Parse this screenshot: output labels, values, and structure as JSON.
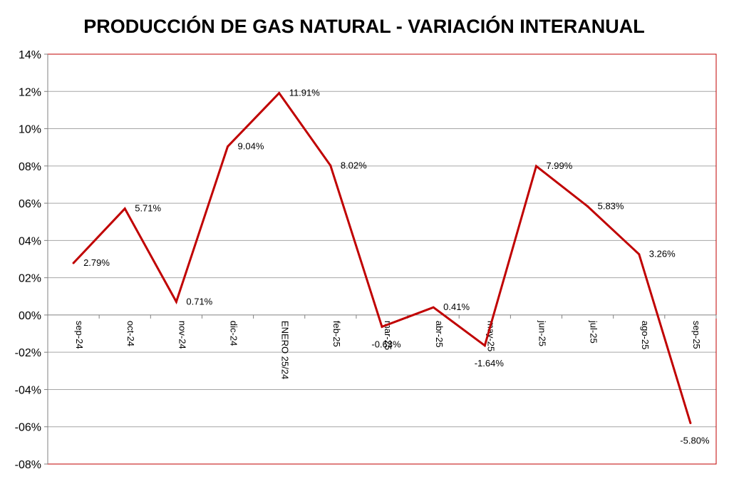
{
  "chart_data": {
    "type": "line",
    "title": "PRODUCCIÓN DE GAS NATURAL - VARIACIÓN INTERANUAL",
    "categories": [
      "sep-24",
      "oct-24",
      "nov-24",
      "dic-24",
      "ENERO 25/24",
      "feb-25",
      "mar-25",
      "abr-25",
      "may-25",
      "jun-25",
      "jul-25",
      "ago-25",
      "sep-25"
    ],
    "series": [
      {
        "values": [
          2.79,
          5.71,
          0.71,
          9.04,
          11.91,
          8.02,
          -0.63,
          0.41,
          -1.64,
          7.99,
          5.83,
          3.26,
          -5.8
        ],
        "labels": [
          "2.79%",
          "5.71%",
          "0.71%",
          "9.04%",
          "11.91%",
          "8.02%",
          "-0.63%",
          "0.41%",
          "-1.64%",
          "7.99%",
          "5.83%",
          "3.26%",
          "-5.80%"
        ]
      }
    ],
    "y_ticks": [
      "14%",
      "12%",
      "10%",
      "08%",
      "06%",
      "04%",
      "02%",
      "00%",
      "-02%",
      "-04%",
      "-06%",
      "-08%"
    ],
    "ylim": [
      -8,
      14
    ],
    "grid": true,
    "legend": "none",
    "colors": {
      "line": "#c00000",
      "plot_border": "#c00000",
      "grid": "#a6a6a6",
      "axis": "#808080"
    }
  }
}
